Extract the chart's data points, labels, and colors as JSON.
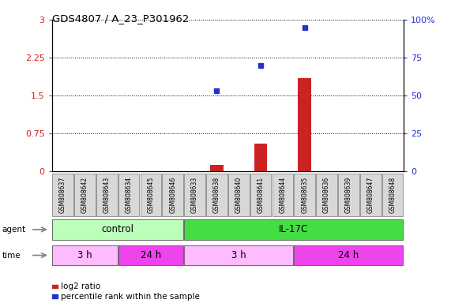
{
  "title": "GDS4807 / A_23_P301962",
  "samples": [
    "GSM808637",
    "GSM808642",
    "GSM808643",
    "GSM808634",
    "GSM808645",
    "GSM808646",
    "GSM808633",
    "GSM808638",
    "GSM808640",
    "GSM808641",
    "GSM808644",
    "GSM808635",
    "GSM808636",
    "GSM808639",
    "GSM808647",
    "GSM808648"
  ],
  "log2_ratio": [
    0,
    0,
    0,
    0,
    0,
    0,
    0,
    0.12,
    0,
    0.55,
    0,
    1.85,
    0,
    0,
    0,
    0
  ],
  "percentile_rank": [
    0,
    0,
    0,
    0,
    0,
    0,
    0,
    53,
    0,
    70,
    0,
    95,
    0,
    0,
    0,
    0
  ],
  "ylim_left": [
    0,
    3
  ],
  "ylim_right": [
    0,
    100
  ],
  "yticks_left": [
    0,
    0.75,
    1.5,
    2.25,
    3
  ],
  "yticks_right": [
    0,
    25,
    50,
    75,
    100
  ],
  "ytick_labels_left": [
    "0",
    "0.75",
    "1.5",
    "2.25",
    "3"
  ],
  "ytick_labels_right": [
    "0",
    "25",
    "50",
    "75",
    "100%"
  ],
  "bar_color": "#cc2222",
  "dot_color": "#2233cc",
  "sample_box_color": "#d8d8d8",
  "sample_box_edge": "#888888",
  "agent_groups": [
    {
      "label": "control",
      "start": 0,
      "end": 6,
      "color": "#bbffbb"
    },
    {
      "label": "IL-17C",
      "start": 6,
      "end": 16,
      "color": "#44dd44"
    }
  ],
  "time_groups": [
    {
      "label": "3 h",
      "start": 0,
      "end": 3,
      "color": "#ffbbff"
    },
    {
      "label": "24 h",
      "start": 3,
      "end": 6,
      "color": "#ee44ee"
    },
    {
      "label": "3 h",
      "start": 6,
      "end": 11,
      "color": "#ffbbff"
    },
    {
      "label": "24 h",
      "start": 11,
      "end": 16,
      "color": "#ee44ee"
    }
  ],
  "bg_color": "#ffffff",
  "legend_items": [
    {
      "label": "log2 ratio",
      "color": "#cc2222"
    },
    {
      "label": "percentile rank within the sample",
      "color": "#2233cc"
    }
  ]
}
